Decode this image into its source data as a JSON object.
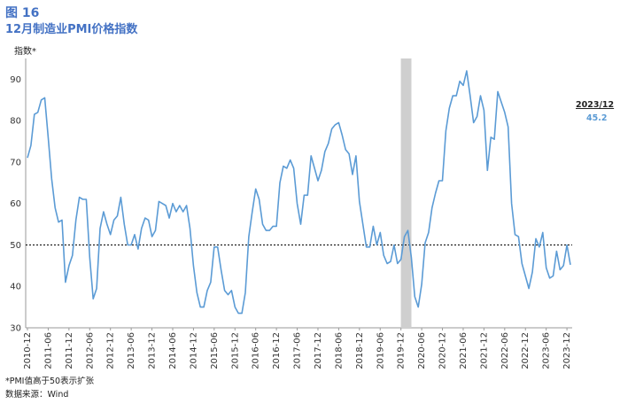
{
  "figure": {
    "number": "图 16",
    "title": "12月制造业PMI价格指数",
    "unit_label": "指数*",
    "callout": {
      "date": "2023/12",
      "value": "45.2"
    },
    "notes": [
      "*PMI值高于50表示扩张",
      "数据来源：Wind"
    ]
  },
  "chart_data": {
    "type": "line",
    "ylabel": "指数*",
    "ylim": [
      30,
      95
    ],
    "yticks": [
      30,
      40,
      50,
      60,
      70,
      80,
      90
    ],
    "reference_line": 50,
    "highlight_period": [
      "2020-01",
      "2020-02"
    ],
    "line_color": "#5B9BD5",
    "x_tick_labels": [
      "2010-12",
      "2011-06",
      "2011-12",
      "2012-06",
      "2012-12",
      "2013-06",
      "2013-12",
      "2014-06",
      "2014-12",
      "2015-06",
      "2015-12",
      "2016-06",
      "2016-12",
      "2017-06",
      "2017-12",
      "2018-06",
      "2018-12",
      "2019-06",
      "2019-12",
      "2020-06",
      "2020-12",
      "2021-06",
      "2021-12",
      "2022-06",
      "2022-12",
      "2023-06",
      "2023-12"
    ],
    "start": "2010-12",
    "end": "2023-12",
    "values": [
      71,
      74,
      81.5,
      82,
      85,
      85.5,
      76,
      66,
      59,
      55.5,
      56,
      41,
      45,
      47.5,
      56,
      61.5,
      61,
      61,
      47,
      37,
      39.5,
      54,
      58,
      55,
      52.5,
      56,
      57,
      61.5,
      55,
      50,
      50,
      52.5,
      49,
      54,
      56.5,
      56,
      52,
      53.5,
      60.5,
      60,
      59.5,
      56.5,
      60,
      58,
      59.5,
      58,
      59.5,
      54,
      45,
      38.5,
      35,
      35,
      39,
      41,
      49.5,
      49.5,
      44,
      39,
      38,
      39,
      35,
      33.5,
      33.5,
      38.5,
      52,
      58,
      63.5,
      61,
      55,
      53.5,
      53.5,
      54.5,
      54.5,
      65,
      69,
      68.5,
      70.5,
      68.5,
      60,
      55,
      62,
      62,
      71.5,
      68.5,
      65.5,
      68,
      72.5,
      74.5,
      78,
      79,
      79.5,
      76.5,
      73,
      72,
      67,
      71.5,
      60.5,
      55,
      49.5,
      49.5,
      54.5,
      50,
      53,
      47.5,
      45.5,
      46,
      50,
      45.5,
      46.5,
      52,
      53.5,
      47,
      37.5,
      35,
      40.5,
      50.5,
      53,
      59,
      62.5,
      65.5,
      65.5,
      77.5,
      83,
      86,
      86,
      89.5,
      88.5,
      92,
      86,
      79.5,
      81,
      86,
      82.5,
      68,
      76,
      75.5,
      87,
      84.5,
      82,
      78.5,
      60,
      52.5,
      52,
      45.5,
      42.5,
      39.5,
      43.5,
      51.5,
      49.5,
      53,
      44.5,
      42,
      42.5,
      48.5,
      44,
      45,
      50,
      45.2
    ]
  }
}
